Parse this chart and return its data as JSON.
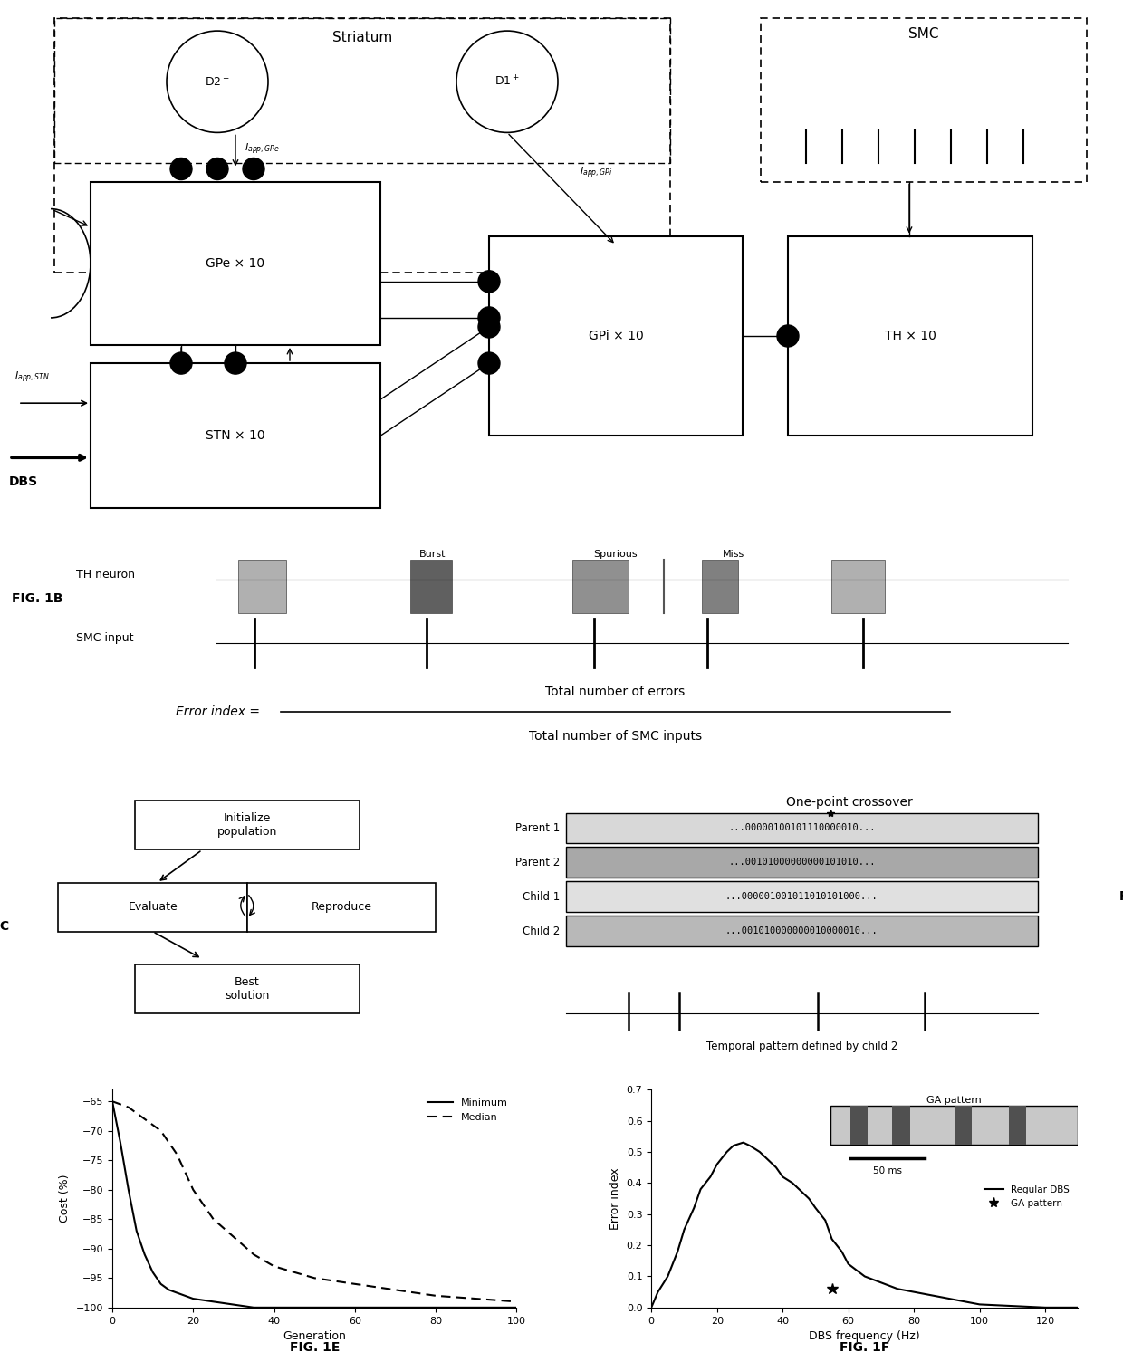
{
  "fig_width": 12.4,
  "fig_height": 15.04,
  "background_color": "#ffffff",
  "panels": {
    "1E": {
      "gen": [
        0,
        2,
        4,
        6,
        8,
        10,
        12,
        14,
        16,
        18,
        20,
        25,
        30,
        35,
        40,
        50,
        60,
        70,
        80,
        90,
        100
      ],
      "min_cost": [
        -65,
        -72,
        -80,
        -87,
        -91,
        -94,
        -96,
        -97,
        -97.5,
        -98,
        -98.5,
        -99,
        -99.5,
        -100,
        -100,
        -100,
        -100,
        -100,
        -100,
        -100,
        -100
      ],
      "med_cost": [
        -65,
        -65.5,
        -66,
        -67,
        -68,
        -69,
        -70,
        -72,
        -74,
        -77,
        -80,
        -85,
        -88,
        -91,
        -93,
        -95,
        -96,
        -97,
        -98,
        -98.5,
        -99
      ],
      "xlabel": "Generation",
      "ylabel": "Cost (%)",
      "yticks": [
        -65,
        -70,
        -75,
        -80,
        -85,
        -90,
        -95,
        -100
      ],
      "xticks": [
        0,
        20,
        40,
        60,
        80,
        100
      ],
      "xlim": [
        0,
        100
      ],
      "ylim": [
        -100,
        -63
      ]
    },
    "1F": {
      "freq": [
        0,
        2,
        5,
        8,
        10,
        13,
        15,
        18,
        20,
        23,
        25,
        28,
        30,
        33,
        35,
        38,
        40,
        43,
        45,
        48,
        50,
        53,
        55,
        58,
        60,
        65,
        70,
        75,
        80,
        85,
        90,
        95,
        100,
        110,
        120,
        130
      ],
      "error": [
        0,
        0.05,
        0.1,
        0.18,
        0.25,
        0.32,
        0.38,
        0.42,
        0.46,
        0.5,
        0.52,
        0.53,
        0.52,
        0.5,
        0.48,
        0.45,
        0.42,
        0.4,
        0.38,
        0.35,
        0.32,
        0.28,
        0.22,
        0.18,
        0.14,
        0.1,
        0.08,
        0.06,
        0.05,
        0.04,
        0.03,
        0.02,
        0.01,
        0.005,
        0.0,
        0.0
      ],
      "ga_freq": 55,
      "ga_error": 0.06,
      "xlabel": "DBS frequency (Hz)",
      "ylabel": "Error index",
      "yticks": [
        0.0,
        0.1,
        0.2,
        0.3,
        0.4,
        0.5,
        0.6,
        0.7
      ],
      "xticks": [
        0,
        20,
        40,
        60,
        80,
        100,
        120
      ],
      "xlim": [
        0,
        130
      ],
      "ylim": [
        0,
        0.7
      ]
    }
  }
}
